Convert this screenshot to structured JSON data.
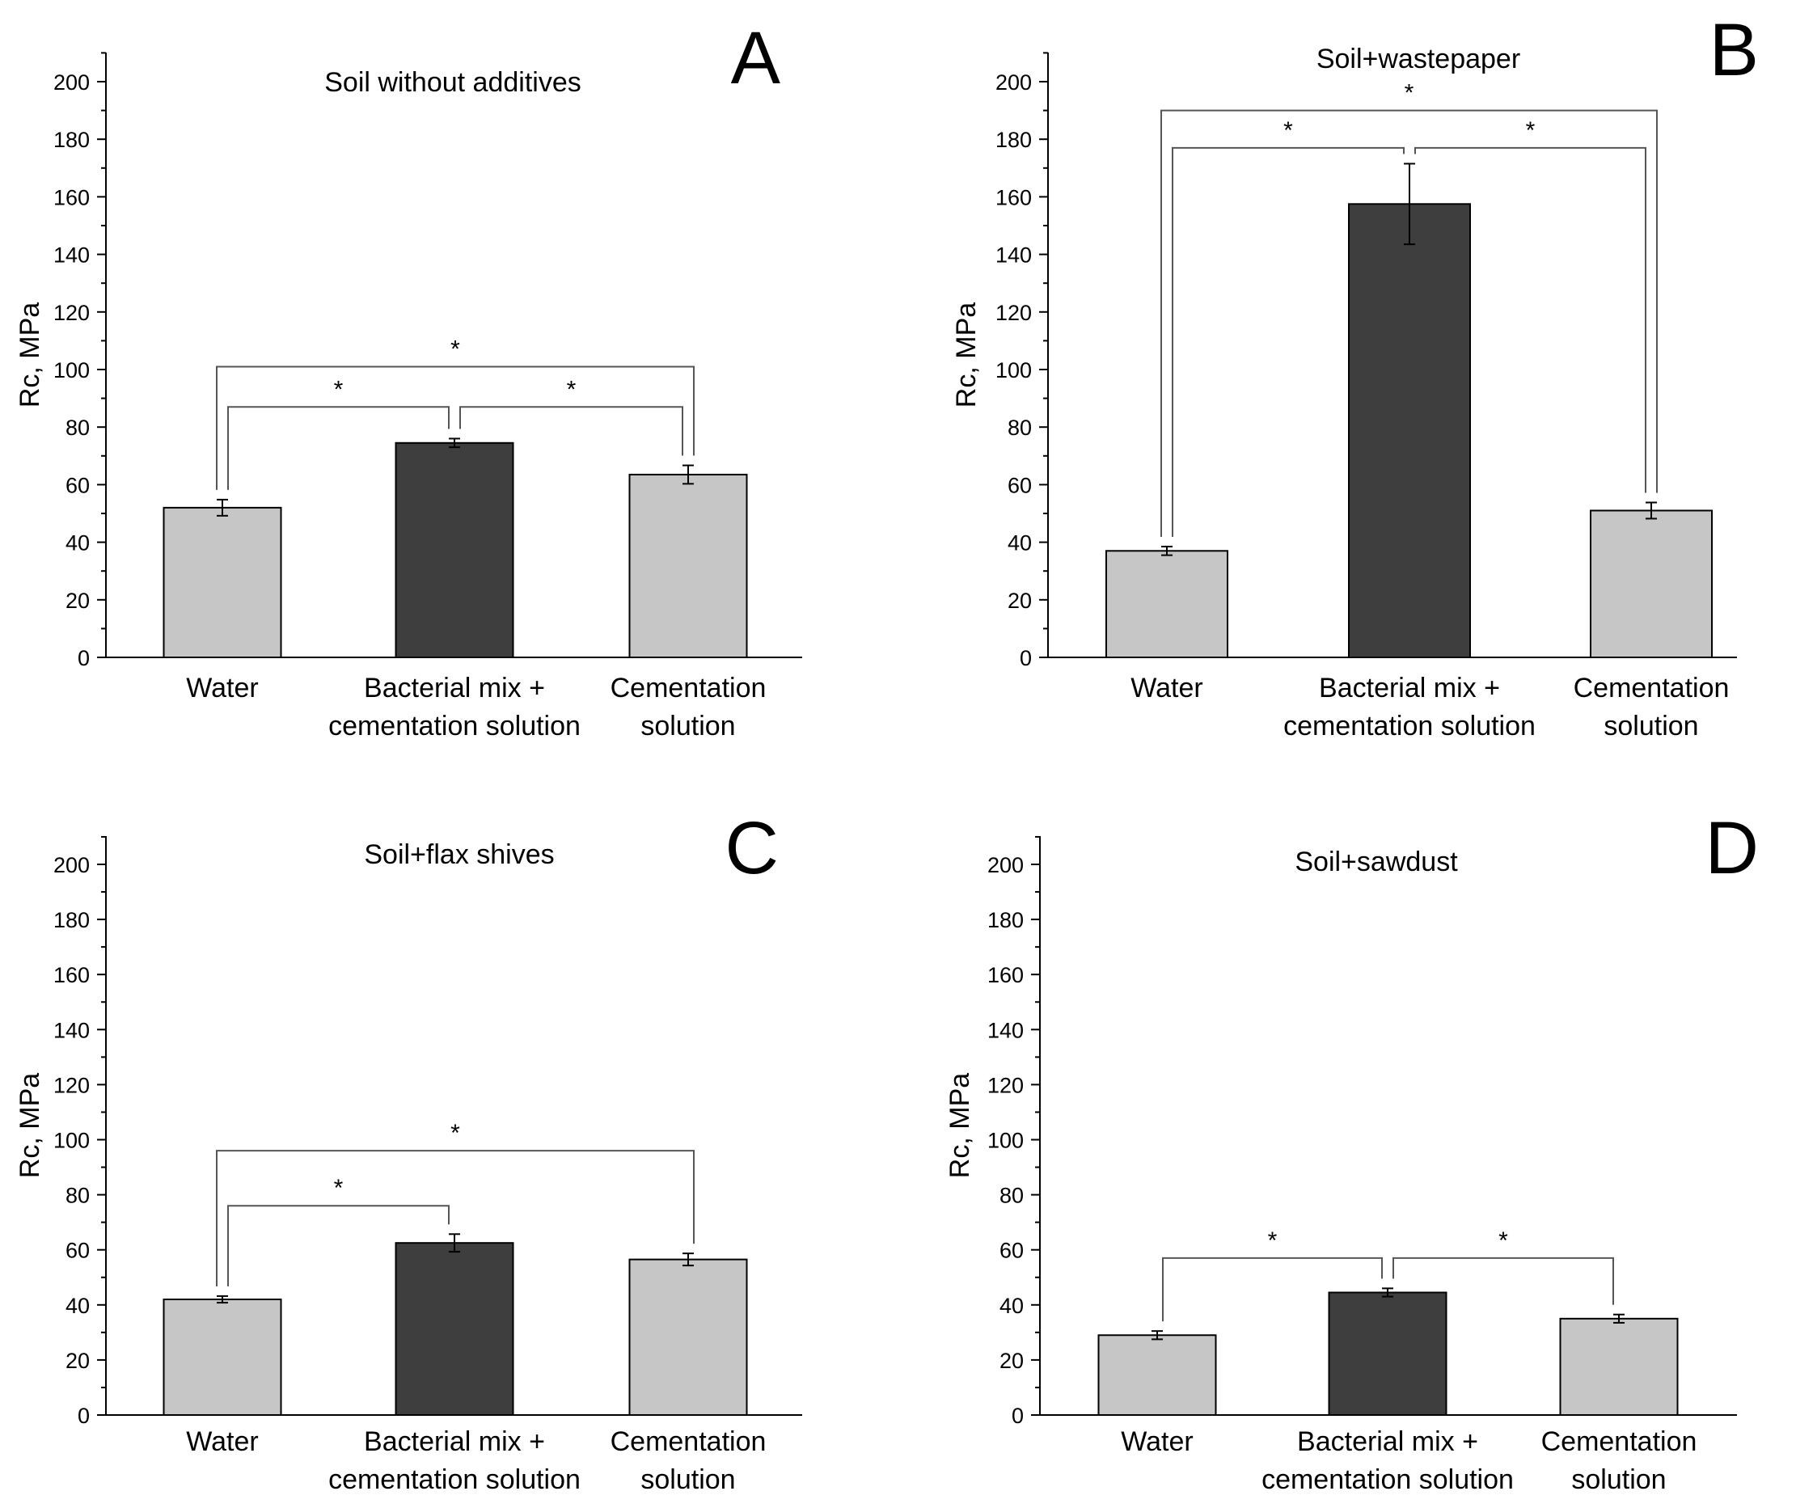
{
  "chart_data": [
    {
      "type": "bar",
      "panel_letter": "A",
      "title": "Soil without additives",
      "ylabel": "Rc, MPa",
      "xlabel": "",
      "ylim": [
        0,
        210
      ],
      "yticks": [
        0,
        20,
        40,
        60,
        80,
        100,
        120,
        140,
        160,
        180,
        200
      ],
      "grid": false,
      "categories": [
        [
          "Water"
        ],
        [
          "Bacterial mix +",
          "cementation solution"
        ],
        [
          "Cementation",
          "solution"
        ]
      ],
      "values": [
        52,
        74.5,
        63.5
      ],
      "errors": [
        2.8,
        1.5,
        3.2
      ],
      "bar_colors": [
        "#c6c6c6",
        "#3e3e3e",
        "#c6c6c6"
      ],
      "significance": [
        {
          "from": 0,
          "to": 1,
          "y": 87,
          "label": "*"
        },
        {
          "from": 1,
          "to": 2,
          "y": 87,
          "label": "*"
        },
        {
          "from": 0,
          "to": 2,
          "y": 101,
          "label": "*"
        }
      ]
    },
    {
      "type": "bar",
      "panel_letter": "B",
      "title": "Soil+wastepaper",
      "ylabel": "Rc, MPa",
      "xlabel": "",
      "ylim": [
        0,
        210
      ],
      "yticks": [
        0,
        20,
        40,
        60,
        80,
        100,
        120,
        140,
        160,
        180,
        200
      ],
      "grid": false,
      "categories": [
        [
          "Water"
        ],
        [
          "Bacterial mix +",
          "cementation solution"
        ],
        [
          "Cementation",
          "solution"
        ]
      ],
      "values": [
        37,
        157.5,
        51
      ],
      "errors": [
        1.5,
        14,
        2.8
      ],
      "bar_colors": [
        "#c6c6c6",
        "#3e3e3e",
        "#c6c6c6"
      ],
      "significance": [
        {
          "from": 0,
          "to": 1,
          "y": 177,
          "label": "*"
        },
        {
          "from": 1,
          "to": 2,
          "y": 177,
          "label": "*"
        },
        {
          "from": 0,
          "to": 2,
          "y": 190,
          "label": "*"
        }
      ]
    },
    {
      "type": "bar",
      "panel_letter": "C",
      "title": "Soil+flax shives",
      "ylabel": "Rc, MPa",
      "xlabel": "",
      "ylim": [
        0,
        210
      ],
      "yticks": [
        0,
        20,
        40,
        60,
        80,
        100,
        120,
        140,
        160,
        180,
        200
      ],
      "grid": false,
      "categories": [
        [
          "Water"
        ],
        [
          "Bacterial mix +",
          "cementation solution"
        ],
        [
          "Cementation",
          "solution"
        ]
      ],
      "values": [
        42,
        62.5,
        56.5
      ],
      "errors": [
        1.2,
        3.2,
        2.2
      ],
      "bar_colors": [
        "#c6c6c6",
        "#3e3e3e",
        "#c6c6c6"
      ],
      "significance": [
        {
          "from": 0,
          "to": 1,
          "y": 76,
          "label": "*"
        },
        {
          "from": 0,
          "to": 2,
          "y": 96,
          "label": "*"
        }
      ]
    },
    {
      "type": "bar",
      "panel_letter": "D",
      "title": "Soil+sawdust",
      "ylabel": "Rc, MPa",
      "xlabel": "",
      "ylim": [
        0,
        210
      ],
      "yticks": [
        0,
        20,
        40,
        60,
        80,
        100,
        120,
        140,
        160,
        180,
        200
      ],
      "grid": false,
      "categories": [
        [
          "Water"
        ],
        [
          "Bacterial mix +",
          "cementation solution"
        ],
        [
          "Cementation",
          "solution"
        ]
      ],
      "values": [
        29,
        44.5,
        35
      ],
      "errors": [
        1.5,
        1.5,
        1.5
      ],
      "bar_colors": [
        "#c6c6c6",
        "#3e3e3e",
        "#c6c6c6"
      ],
      "significance": [
        {
          "from": 0,
          "to": 1,
          "y": 57,
          "label": "*"
        },
        {
          "from": 1,
          "to": 2,
          "y": 57,
          "label": "*"
        }
      ]
    }
  ]
}
